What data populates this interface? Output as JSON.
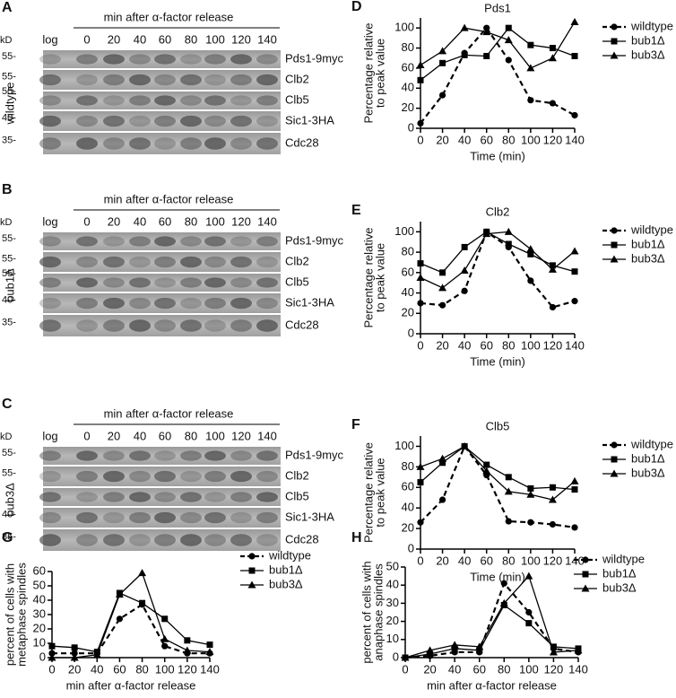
{
  "blots": [
    {
      "letter": "A",
      "strain": "wildtype",
      "header": "min after α-factor release",
      "kd": "kD",
      "lanes": [
        "log",
        "0",
        "20",
        "40",
        "60",
        "80",
        "100",
        "120",
        "140"
      ],
      "markers": [
        "55-",
        "55-",
        "55-",
        "40-",
        "35-"
      ],
      "bands": [
        "Pds1-9myc",
        "Clb2",
        "Clb5",
        "Sic1-3HA",
        "Cdc28"
      ]
    },
    {
      "letter": "B",
      "strain": "bub1Δ",
      "header": "min after α-factor release",
      "kd": "kD",
      "lanes": [
        "log",
        "0",
        "20",
        "40",
        "60",
        "80",
        "100",
        "120",
        "140"
      ],
      "markers": [
        "55-",
        "55-",
        "55-",
        "40-",
        "35-"
      ],
      "bands": [
        "Pds1-9myc",
        "Clb2",
        "Clb5",
        "Sic1-3HA",
        "Cdc28"
      ]
    },
    {
      "letter": "C",
      "strain": "bub3Δ",
      "header": "min after α-factor release",
      "kd": "kD",
      "lanes": [
        "log",
        "0",
        "20",
        "40",
        "60",
        "80",
        "100",
        "120",
        "140"
      ],
      "markers": [
        "55-",
        "55-",
        "40-",
        "35-"
      ],
      "bands": [
        "Pds1-9myc",
        "Clb2",
        "Clb5",
        "Sic1-3HA",
        "Cdc28"
      ]
    }
  ],
  "chart_data": [
    {
      "type": "line",
      "panel": "D",
      "title": "Pds1",
      "ylabel": [
        "Percentage relative",
        "to peak value"
      ],
      "xlabel": "Time (min)",
      "x": [
        0,
        20,
        40,
        60,
        80,
        100,
        120,
        140
      ],
      "xlim": [
        0,
        140
      ],
      "xticks": [
        0,
        20,
        40,
        60,
        80,
        100,
        120,
        140
      ],
      "ylim": [
        0,
        110
      ],
      "yticks": [
        0,
        20,
        40,
        60,
        80,
        100
      ],
      "series": [
        {
          "name": "wildtype",
          "color": "#000000",
          "marker": "circle",
          "dashed": true,
          "values": [
            5,
            33,
            75,
            100,
            68,
            28,
            25,
            13
          ]
        },
        {
          "name": "bub1Δ",
          "color": "#000000",
          "marker": "square",
          "dashed": false,
          "values": [
            48,
            65,
            73,
            72,
            100,
            83,
            80,
            72
          ]
        },
        {
          "name": "bub3Δ",
          "color": "#000000",
          "marker": "triangle",
          "dashed": false,
          "values": [
            63,
            77,
            100,
            96,
            88,
            60,
            70,
            106
          ]
        }
      ]
    },
    {
      "type": "line",
      "panel": "E",
      "title": "Clb2",
      "ylabel": [
        "Percentage relative",
        "to peak value"
      ],
      "xlabel": "Time (min)",
      "x": [
        0,
        20,
        40,
        60,
        80,
        100,
        120,
        140
      ],
      "xlim": [
        0,
        140
      ],
      "xticks": [
        0,
        20,
        40,
        60,
        80,
        100,
        120,
        140
      ],
      "ylim": [
        0,
        110
      ],
      "yticks": [
        0,
        20,
        40,
        60,
        80,
        100
      ],
      "series": [
        {
          "name": "wildtype",
          "color": "#000000",
          "marker": "circle",
          "dashed": true,
          "values": [
            30,
            28,
            42,
            100,
            85,
            52,
            26,
            32
          ]
        },
        {
          "name": "bub1Δ",
          "color": "#000000",
          "marker": "square",
          "dashed": false,
          "values": [
            69,
            60,
            85,
            100,
            88,
            78,
            67,
            61
          ]
        },
        {
          "name": "bub3Δ",
          "color": "#000000",
          "marker": "triangle",
          "dashed": false,
          "values": [
            55,
            45,
            62,
            98,
            100,
            83,
            63,
            81
          ]
        }
      ]
    },
    {
      "type": "line",
      "panel": "F",
      "title": "Clb5",
      "ylabel": [
        "Percentage relative",
        "to peak value"
      ],
      "xlabel": "Time (min)",
      "x": [
        0,
        20,
        40,
        60,
        80,
        100,
        120,
        140
      ],
      "xlim": [
        0,
        140
      ],
      "xticks": [
        0,
        20,
        40,
        60,
        80,
        100,
        120,
        140
      ],
      "ylim": [
        0,
        110
      ],
      "yticks": [
        0,
        20,
        40,
        60,
        80,
        100
      ],
      "series": [
        {
          "name": "wildtype",
          "color": "#000000",
          "marker": "circle",
          "dashed": true,
          "values": [
            26,
            48,
            100,
            72,
            27,
            26,
            24,
            21
          ]
        },
        {
          "name": "bub1Δ",
          "color": "#000000",
          "marker": "square",
          "dashed": false,
          "values": [
            65,
            84,
            100,
            82,
            70,
            59,
            60,
            58
          ]
        },
        {
          "name": "bub3Δ",
          "color": "#000000",
          "marker": "triangle",
          "dashed": false,
          "values": [
            80,
            88,
            100,
            76,
            56,
            53,
            48,
            66
          ]
        }
      ]
    },
    {
      "type": "line",
      "panel": "G",
      "ylabel": [
        "percent of cells with",
        "metaphase spindles"
      ],
      "xlabel": "min after α-factor release",
      "x": [
        0,
        20,
        40,
        60,
        80,
        100,
        120,
        140
      ],
      "xlim": [
        0,
        140
      ],
      "xticks": [
        0,
        20,
        40,
        60,
        80,
        100,
        120,
        140
      ],
      "ylim": [
        0,
        60
      ],
      "yticks": [
        0,
        10,
        20,
        30,
        40,
        50,
        60
      ],
      "series": [
        {
          "name": "wildtype",
          "color": "#000000",
          "marker": "circle",
          "dashed": true,
          "values": [
            3,
            3,
            3,
            27,
            37,
            8,
            3,
            3
          ]
        },
        {
          "name": "bub1Δ",
          "color": "#000000",
          "marker": "square",
          "dashed": false,
          "values": [
            8,
            7,
            4,
            45,
            38,
            27,
            12,
            9
          ]
        },
        {
          "name": "bub3Δ",
          "color": "#000000",
          "marker": "triangle",
          "dashed": false,
          "values": [
            0,
            0,
            2,
            44,
            59,
            13,
            5,
            4
          ]
        }
      ]
    },
    {
      "type": "line",
      "panel": "H",
      "ylabel": [
        "percent of cells with",
        "anaphase spindles"
      ],
      "xlabel": "min after α-factor release",
      "x": [
        0,
        20,
        40,
        60,
        80,
        100,
        120,
        140
      ],
      "xlim": [
        0,
        140
      ],
      "xticks": [
        0,
        20,
        40,
        60,
        80,
        100,
        120,
        140
      ],
      "ylim": [
        0,
        50
      ],
      "yticks": [
        0,
        10,
        20,
        30,
        40,
        50
      ],
      "series": [
        {
          "name": "wildtype",
          "color": "#000000",
          "marker": "circle",
          "dashed": true,
          "values": [
            0,
            1,
            3,
            3,
            41,
            25,
            5,
            3
          ]
        },
        {
          "name": "bub1Δ",
          "color": "#000000",
          "marker": "square",
          "dashed": false,
          "values": [
            0,
            2,
            5,
            4,
            29,
            19,
            6,
            5
          ]
        },
        {
          "name": "bub3Δ",
          "color": "#000000",
          "marker": "triangle",
          "dashed": false,
          "values": [
            0,
            4,
            7,
            6,
            30,
            45,
            3,
            4
          ]
        }
      ]
    }
  ]
}
